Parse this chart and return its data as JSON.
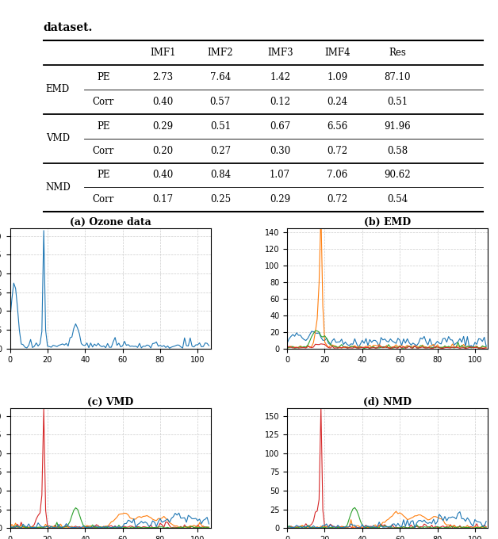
{
  "title": "dataset.",
  "table": {
    "row_groups": [
      "EMD",
      "VMD",
      "NMD"
    ],
    "col_headers": [
      "IMF1",
      "IMF2",
      "IMF3",
      "IMF4",
      "Res"
    ],
    "data": {
      "EMD": {
        "PE": [
          2.73,
          7.64,
          1.42,
          1.09,
          87.1
        ],
        "Corr": [
          0.4,
          0.57,
          0.12,
          0.24,
          0.51
        ]
      },
      "VMD": {
        "PE": [
          0.29,
          0.51,
          0.67,
          6.56,
          91.96
        ],
        "Corr": [
          0.2,
          0.27,
          0.3,
          0.72,
          0.58
        ]
      },
      "NMD": {
        "PE": [
          0.4,
          0.84,
          1.07,
          7.06,
          90.62
        ],
        "Corr": [
          0.17,
          0.25,
          0.29,
          0.72,
          0.54
        ]
      }
    }
  },
  "subplot_titles": [
    "(a) Ozone data",
    "(b) EMD",
    "(c) VMD",
    "(d) NMD"
  ],
  "xlim": [
    0,
    107
  ],
  "xticks": [
    0,
    20,
    40,
    60,
    80,
    100
  ],
  "colors": {
    "blue": "#1f77b4",
    "orange": "#ff7f0e",
    "green": "#2ca02c",
    "red": "#d62728"
  }
}
